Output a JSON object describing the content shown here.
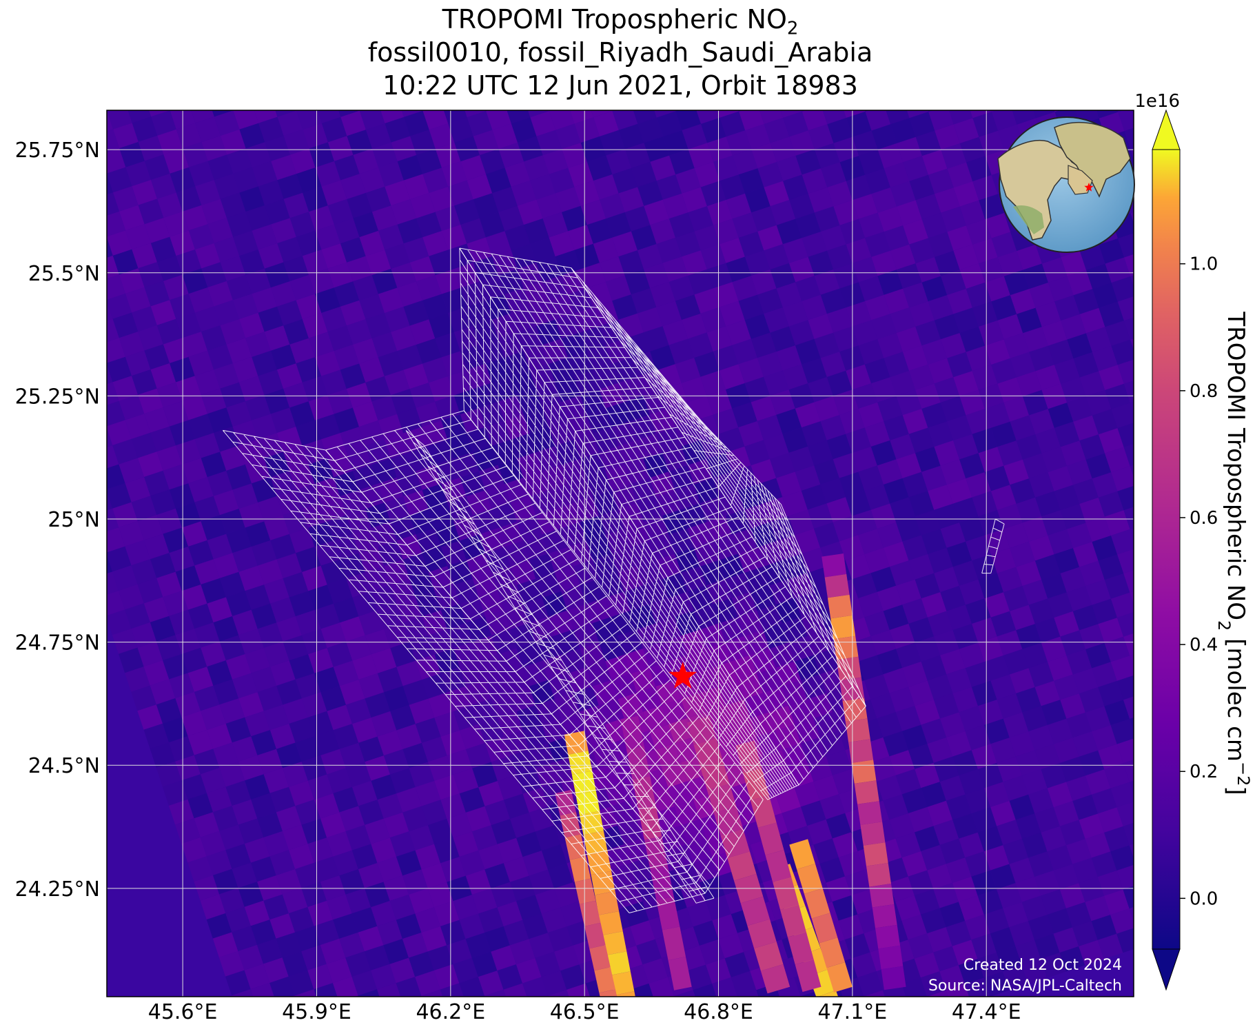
{
  "title": {
    "line1_prefix": "TROPOMI Tropospheric NO",
    "line1_sub": "2",
    "line2": "fossil0010, fossil_Riyadh_Saudi_Arabia",
    "line3": "10:22 UTC 12 Jun 2021, Orbit 18983"
  },
  "map": {
    "lon_range": [
      45.43,
      47.73
    ],
    "lat_range": [
      24.03,
      25.83
    ],
    "lon_ticks": [
      "45.6°E",
      "45.9°E",
      "46.2°E",
      "46.5°E",
      "46.8°E",
      "47.1°E",
      "47.4°E"
    ],
    "lon_tick_values": [
      45.6,
      45.9,
      46.2,
      46.5,
      46.8,
      47.1,
      47.4
    ],
    "lat_ticks": [
      "25.75°N",
      "25.5°N",
      "25.25°N",
      "25°N",
      "24.75°N",
      "24.5°N",
      "24.25°N"
    ],
    "lat_tick_values": [
      25.75,
      25.5,
      25.25,
      25.0,
      24.75,
      24.5,
      24.25
    ],
    "grid": true,
    "target": {
      "name": "Riyadh",
      "lon": 46.72,
      "lat": 24.68,
      "marker": "red-star"
    },
    "target_marker_color": "#ff0000",
    "background_color": "#3a06a0"
  },
  "colorbar": {
    "exponent": "1e16",
    "label_prefix": "TROPOMI Tropospheric NO",
    "label_sub": "2",
    "label_units_prefix": " [molec cm",
    "label_units_sup": "−2",
    "label_units_suffix": "]",
    "range": [
      -0.08,
      1.18
    ],
    "ticks": [
      "0.0",
      "0.2",
      "0.4",
      "0.6",
      "0.8",
      "1.0"
    ],
    "tick_values": [
      0.0,
      0.2,
      0.4,
      0.6,
      0.8,
      1.0
    ],
    "colormap": "plasma",
    "extend": "both"
  },
  "credits": {
    "created": "Created 12 Oct 2024",
    "source": "Source: NASA/JPL-Caltech"
  },
  "inset_globe": {
    "marker": "red-star"
  }
}
